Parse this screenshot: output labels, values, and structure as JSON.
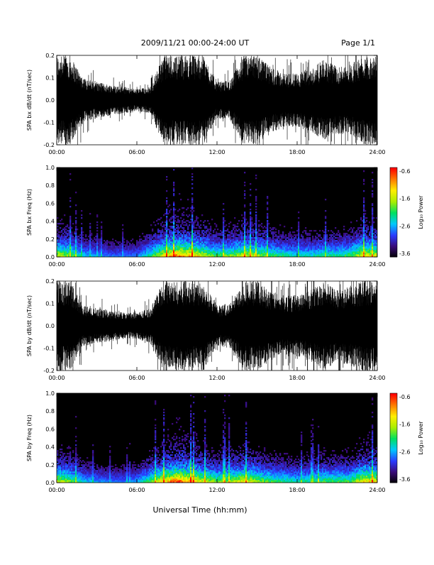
{
  "header": {
    "date_range": "2009/11/21  00:00-24:00 UT",
    "page": "Page 1/1"
  },
  "footer": {
    "xlabel": "Universal Time (hh:mm)"
  },
  "colorbar": {
    "label": "Log₁₀ Power",
    "ticks": [
      "-0.6",
      "-1.6",
      "-2.6",
      "-3.6"
    ],
    "colors": [
      "#000000",
      "#3a0a78",
      "#2a3cff",
      "#00c8ff",
      "#00e060",
      "#aaee00",
      "#ffee00",
      "#ff7a00",
      "#ff0000"
    ]
  },
  "chart_data": [
    {
      "type": "line",
      "panel": "SPA bx waveform",
      "ylabel": "SPA bx dB/dt (nT/sec)",
      "ylim": [
        -0.2,
        0.2
      ],
      "yticks": [
        "0.2",
        "0.1",
        "0.0",
        "-0.1",
        "-0.2"
      ],
      "xlim_hours": [
        0,
        24
      ],
      "xticks": [
        "00:00",
        "06:00",
        "12:00",
        "18:00",
        "24:00"
      ],
      "envelope": {
        "hours": [
          0,
          1,
          2,
          3,
          4,
          5,
          6,
          7,
          8,
          9,
          10,
          11,
          12,
          13,
          14,
          15,
          16,
          17,
          18,
          19,
          20,
          21,
          22,
          23,
          24
        ],
        "amplitude": [
          0.2,
          0.2,
          0.1,
          0.08,
          0.07,
          0.06,
          0.05,
          0.06,
          0.2,
          0.2,
          0.2,
          0.2,
          0.08,
          0.09,
          0.2,
          0.2,
          0.15,
          0.12,
          0.12,
          0.14,
          0.18,
          0.15,
          0.16,
          0.2,
          0.2
        ]
      }
    },
    {
      "type": "heatmap",
      "panel": "SPA bx spectrogram",
      "ylabel": "SPA bx Freq (Hz)",
      "ylim": [
        0.0,
        1.0
      ],
      "yticks": [
        "1.0",
        "0.8",
        "0.6",
        "0.4",
        "0.2",
        "0.0"
      ],
      "xlim_hours": [
        0,
        24
      ],
      "xticks": [
        "00:00",
        "06:00",
        "12:00",
        "18:00",
        "24:00"
      ],
      "zlim": [
        -3.6,
        -0.6
      ],
      "activity": {
        "hours": [
          0,
          1,
          2,
          3,
          4,
          5,
          6,
          7,
          8,
          9,
          10,
          11,
          12,
          13,
          14,
          15,
          16,
          17,
          18,
          19,
          20,
          21,
          22,
          23,
          24
        ],
        "level": [
          0.7,
          0.6,
          0.4,
          0.35,
          0.3,
          0.3,
          0.3,
          0.5,
          0.75,
          0.9,
          0.85,
          0.7,
          0.55,
          0.6,
          0.7,
          0.65,
          0.55,
          0.5,
          0.45,
          0.45,
          0.5,
          0.5,
          0.55,
          0.75,
          0.7
        ]
      }
    },
    {
      "type": "line",
      "panel": "SPA by waveform",
      "ylabel": "SPA by dB/dt (nT/sec)",
      "ylim": [
        -0.2,
        0.2
      ],
      "yticks": [
        "0.2",
        "0.1",
        "0.0",
        "-0.1",
        "-0.2"
      ],
      "xlim_hours": [
        0,
        24
      ],
      "xticks": [
        "00:00",
        "06:00",
        "12:00",
        "18:00",
        "24:00"
      ],
      "envelope": {
        "hours": [
          0,
          1,
          2,
          3,
          4,
          5,
          6,
          7,
          8,
          9,
          10,
          11,
          12,
          13,
          14,
          15,
          16,
          17,
          18,
          19,
          20,
          21,
          22,
          23,
          24
        ],
        "amplitude": [
          0.2,
          0.2,
          0.09,
          0.08,
          0.07,
          0.06,
          0.06,
          0.08,
          0.2,
          0.2,
          0.2,
          0.2,
          0.09,
          0.1,
          0.2,
          0.2,
          0.16,
          0.13,
          0.14,
          0.16,
          0.2,
          0.16,
          0.18,
          0.2,
          0.2
        ]
      }
    },
    {
      "type": "heatmap",
      "panel": "SPA by spectrogram",
      "ylabel": "SPA by Freq (Hz)",
      "ylim": [
        0.0,
        1.0
      ],
      "yticks": [
        "1.0",
        "0.8",
        "0.6",
        "0.4",
        "0.2",
        "0.0"
      ],
      "xlim_hours": [
        0,
        24
      ],
      "xticks": [
        "00:00",
        "06:00",
        "12:00",
        "18:00",
        "24:00"
      ],
      "zlim": [
        -3.6,
        -0.6
      ],
      "activity": {
        "hours": [
          0,
          1,
          2,
          3,
          4,
          5,
          6,
          7,
          8,
          9,
          10,
          11,
          12,
          13,
          14,
          15,
          16,
          17,
          18,
          19,
          20,
          21,
          22,
          23,
          24
        ],
        "level": [
          0.7,
          0.6,
          0.4,
          0.35,
          0.3,
          0.3,
          0.35,
          0.55,
          0.8,
          0.95,
          0.85,
          0.7,
          0.6,
          0.65,
          0.75,
          0.65,
          0.55,
          0.5,
          0.45,
          0.5,
          0.55,
          0.55,
          0.55,
          0.8,
          0.75
        ]
      }
    }
  ]
}
